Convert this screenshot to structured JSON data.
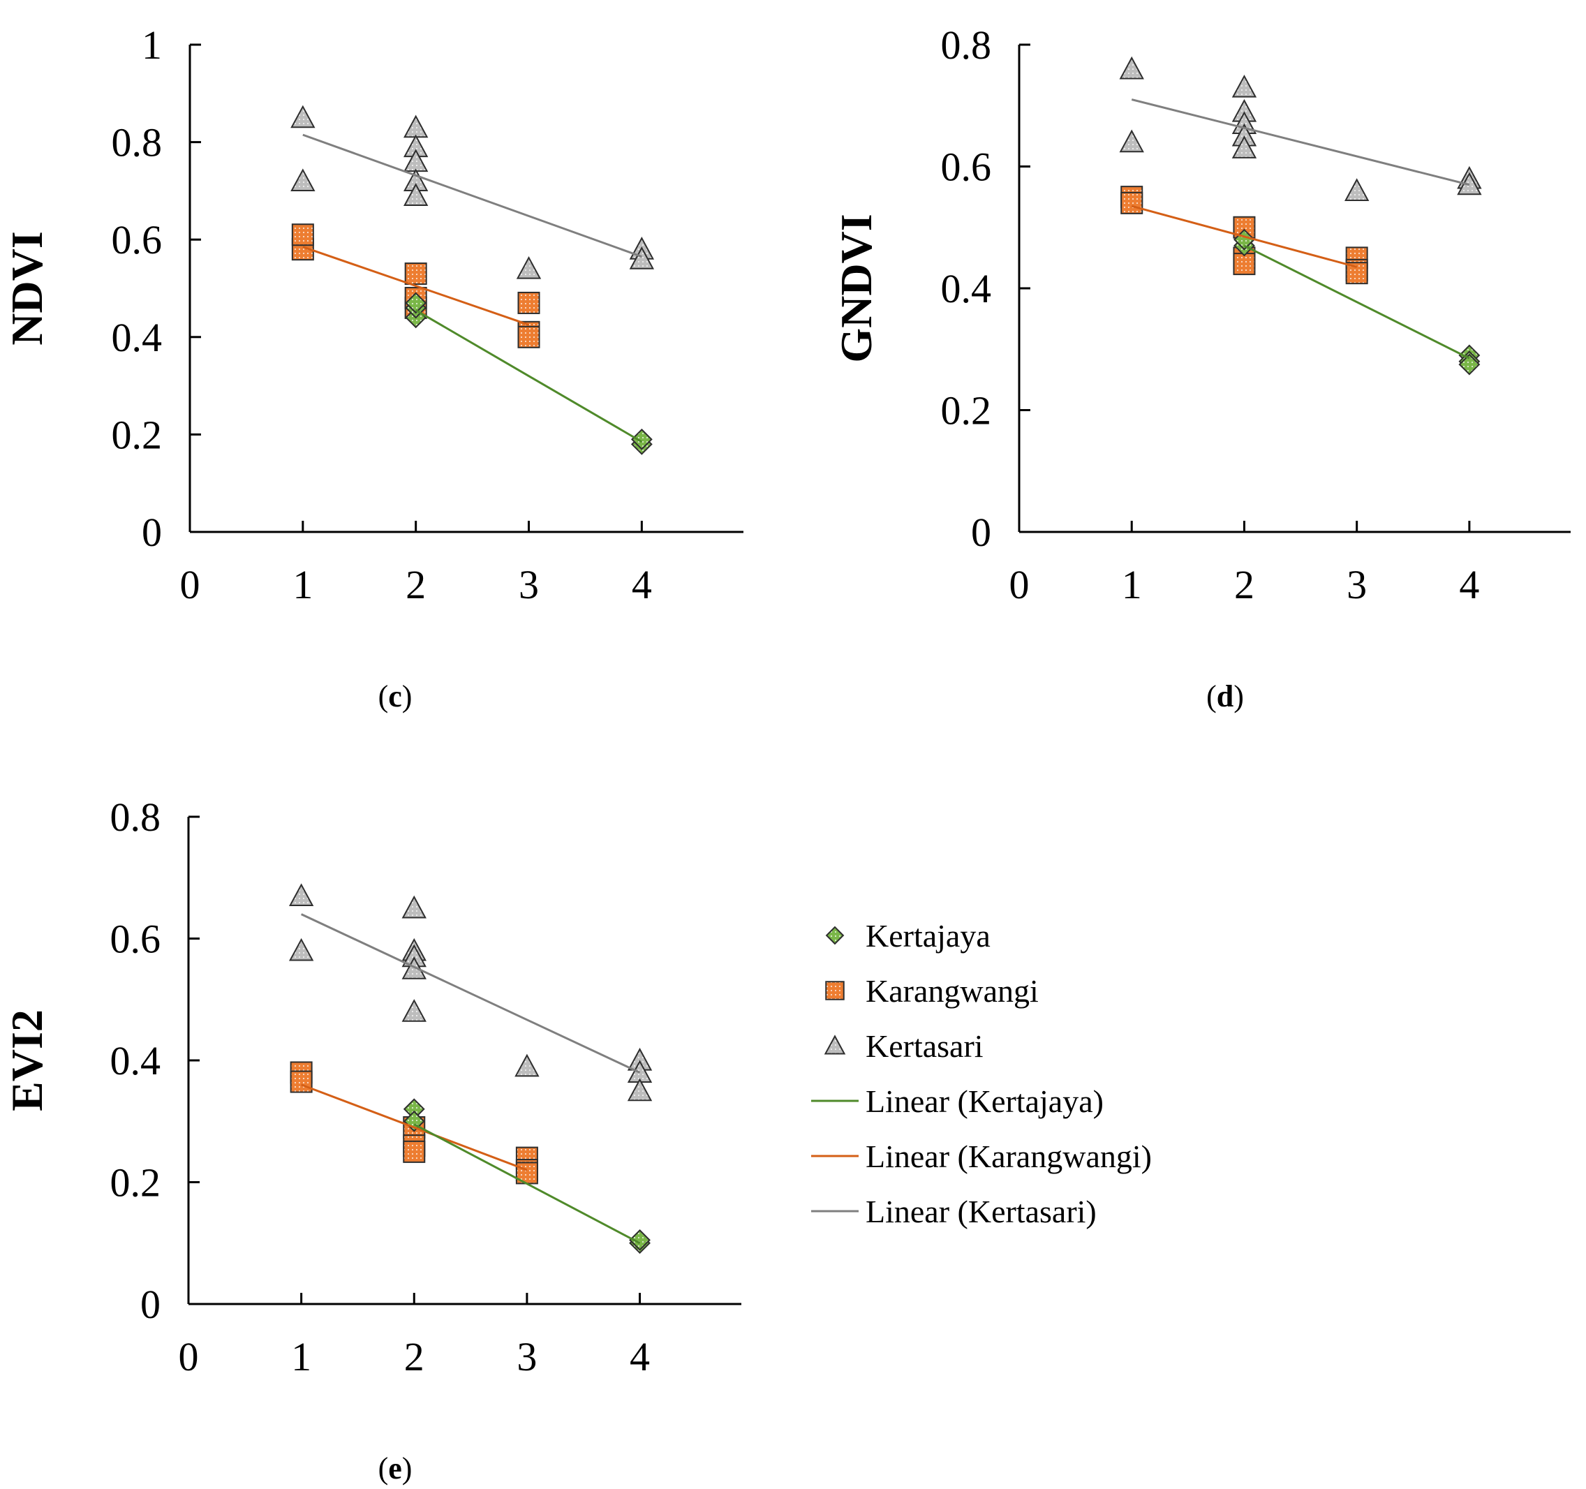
{
  "colors": {
    "Kertajaya": "#7ab648",
    "Kertajaya_line": "#4f8a2a",
    "Karangwangi": "#ed7d31",
    "Karangwangi_line": "#d45f16",
    "Kertasari": "#bfbfbf",
    "Kertasari_line": "#7f7f7f"
  },
  "legend": {
    "items": [
      {
        "label": "Kertajaya",
        "kind": "marker",
        "series": "Kertajaya",
        "icon": "diamond-icon"
      },
      {
        "label": "Karangwangi",
        "kind": "marker",
        "series": "Karangwangi",
        "icon": "square-icon"
      },
      {
        "label": "Kertasari",
        "kind": "marker",
        "series": "Kertasari",
        "icon": "triangle-icon"
      },
      {
        "label": "Linear (Kertajaya)",
        "kind": "line",
        "series": "Kertajaya"
      },
      {
        "label": "Linear (Karangwangi)",
        "kind": "line",
        "series": "Karangwangi"
      },
      {
        "label": "Linear (Kertasari)",
        "kind": "line",
        "series": "Kertasari"
      }
    ]
  },
  "chart_data": [
    {
      "id": "c",
      "type": "scatter",
      "caption_open": "(",
      "caption_letter": "c",
      "caption_close": ")",
      "ylabel": "NDVI",
      "xlabel": "",
      "xlim": [
        0,
        4.9
      ],
      "ylim": [
        0,
        1
      ],
      "xticks": [
        0,
        1,
        2,
        3,
        4
      ],
      "yticks": [
        0,
        0.2,
        0.4,
        0.6,
        0.8,
        1
      ],
      "ytick_labels": [
        "0",
        "0.2",
        "0.4",
        "0.6",
        "0.8",
        "1"
      ],
      "series": [
        {
          "name": "Kertajaya",
          "marker": "diamond",
          "points": [
            [
              2,
              0.44
            ],
            [
              2,
              0.46
            ],
            [
              2,
              0.47
            ],
            [
              4,
              0.18
            ],
            [
              4,
              0.19
            ]
          ],
          "trend": [
            [
              2,
              0.455
            ],
            [
              4,
              0.185
            ]
          ]
        },
        {
          "name": "Karangwangi",
          "marker": "square",
          "points": [
            [
              1,
              0.58
            ],
            [
              1,
              0.61
            ],
            [
              2,
              0.53
            ],
            [
              2,
              0.46
            ],
            [
              2,
              0.48
            ],
            [
              3,
              0.47
            ],
            [
              3,
              0.41
            ],
            [
              3,
              0.4
            ]
          ],
          "trend": [
            [
              1,
              0.585
            ],
            [
              3,
              0.425
            ]
          ]
        },
        {
          "name": "Kertasari",
          "marker": "triangle",
          "points": [
            [
              1,
              0.85
            ],
            [
              1,
              0.72
            ],
            [
              2,
              0.83
            ],
            [
              2,
              0.79
            ],
            [
              2,
              0.76
            ],
            [
              2,
              0.72
            ],
            [
              2,
              0.69
            ],
            [
              3,
              0.54
            ],
            [
              4,
              0.58
            ],
            [
              4,
              0.56
            ]
          ],
          "trend": [
            [
              1,
              0.815
            ],
            [
              4,
              0.565
            ]
          ]
        }
      ]
    },
    {
      "id": "d",
      "type": "scatter",
      "caption_open": "(",
      "caption_letter": "d",
      "caption_close": ")",
      "ylabel": "GNDVI",
      "xlabel": "",
      "xlim": [
        0,
        4.9
      ],
      "ylim": [
        0,
        0.8
      ],
      "xticks": [
        0,
        1,
        2,
        3,
        4
      ],
      "yticks": [
        0,
        0.2,
        0.4,
        0.6,
        0.8
      ],
      "ytick_labels": [
        "0",
        "0.2",
        "0.4",
        "0.6",
        "0.8"
      ],
      "series": [
        {
          "name": "Kertajaya",
          "marker": "diamond",
          "points": [
            [
              2,
              0.47
            ],
            [
              2,
              0.48
            ],
            [
              4,
              0.29
            ],
            [
              4,
              0.28
            ],
            [
              4,
              0.275
            ]
          ],
          "trend": [
            [
              2,
              0.47
            ],
            [
              4,
              0.285
            ]
          ]
        },
        {
          "name": "Karangwangi",
          "marker": "square",
          "points": [
            [
              1,
              0.55
            ],
            [
              1,
              0.54
            ],
            [
              2,
              0.5
            ],
            [
              2,
              0.45
            ],
            [
              2,
              0.44
            ],
            [
              3,
              0.45
            ],
            [
              3,
              0.43
            ],
            [
              3,
              0.425
            ]
          ],
          "trend": [
            [
              1,
              0.535
            ],
            [
              3,
              0.435
            ]
          ]
        },
        {
          "name": "Kertasari",
          "marker": "triangle",
          "points": [
            [
              1,
              0.76
            ],
            [
              1,
              0.64
            ],
            [
              2,
              0.73
            ],
            [
              2,
              0.69
            ],
            [
              2,
              0.67
            ],
            [
              2,
              0.65
            ],
            [
              2,
              0.63
            ],
            [
              3,
              0.56
            ],
            [
              4,
              0.58
            ],
            [
              4,
              0.57
            ]
          ],
          "trend": [
            [
              1,
              0.71
            ],
            [
              4,
              0.57
            ]
          ]
        }
      ]
    },
    {
      "id": "e",
      "type": "scatter",
      "caption_open": "(",
      "caption_letter": "e",
      "caption_close": ")",
      "ylabel": "EVI2",
      "xlabel": "",
      "xlim": [
        0,
        4.9
      ],
      "ylim": [
        0,
        0.8
      ],
      "xticks": [
        0,
        1,
        2,
        3,
        4
      ],
      "yticks": [
        0,
        0.2,
        0.4,
        0.6,
        0.8
      ],
      "ytick_labels": [
        "0",
        "0.2",
        "0.4",
        "0.6",
        "0.8"
      ],
      "series": [
        {
          "name": "Kertajaya",
          "marker": "diamond",
          "points": [
            [
              2,
              0.32
            ],
            [
              2,
              0.3
            ],
            [
              4,
              0.1
            ],
            [
              4,
              0.105
            ]
          ],
          "trend": [
            [
              2,
              0.295
            ],
            [
              4,
              0.1
            ]
          ]
        },
        {
          "name": "Karangwangi",
          "marker": "square",
          "points": [
            [
              1,
              0.38
            ],
            [
              1,
              0.365
            ],
            [
              2,
              0.29
            ],
            [
              2,
              0.26
            ],
            [
              2,
              0.25
            ],
            [
              3,
              0.24
            ],
            [
              3,
              0.22
            ],
            [
              3,
              0.215
            ]
          ],
          "trend": [
            [
              1,
              0.36
            ],
            [
              3,
              0.22
            ]
          ]
        },
        {
          "name": "Kertasari",
          "marker": "triangle",
          "points": [
            [
              1,
              0.67
            ],
            [
              1,
              0.58
            ],
            [
              2,
              0.65
            ],
            [
              2,
              0.58
            ],
            [
              2,
              0.57
            ],
            [
              2,
              0.55
            ],
            [
              2,
              0.48
            ],
            [
              3,
              0.39
            ],
            [
              4,
              0.4
            ],
            [
              4,
              0.38
            ],
            [
              4,
              0.35
            ]
          ],
          "trend": [
            [
              1,
              0.64
            ],
            [
              4,
              0.38
            ]
          ]
        }
      ]
    }
  ]
}
